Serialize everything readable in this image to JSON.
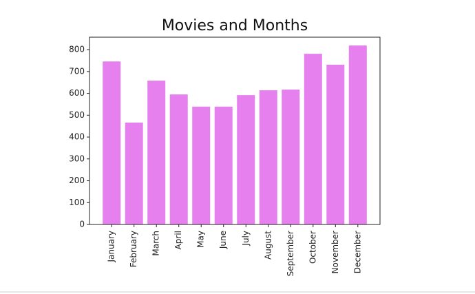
{
  "chart_data": {
    "type": "bar",
    "title": "Movies and Months",
    "categories": [
      "January",
      "February",
      "March",
      "April",
      "May",
      "June",
      "July",
      "August",
      "September",
      "October",
      "November",
      "December"
    ],
    "values": [
      746,
      466,
      658,
      595,
      539,
      539,
      592,
      614,
      617,
      781,
      731,
      819
    ],
    "color": "#e580ee",
    "ylim": [
      0,
      857
    ],
    "yticks": [
      0,
      100,
      200,
      300,
      400,
      500,
      600,
      700,
      800
    ],
    "grid": false
  }
}
